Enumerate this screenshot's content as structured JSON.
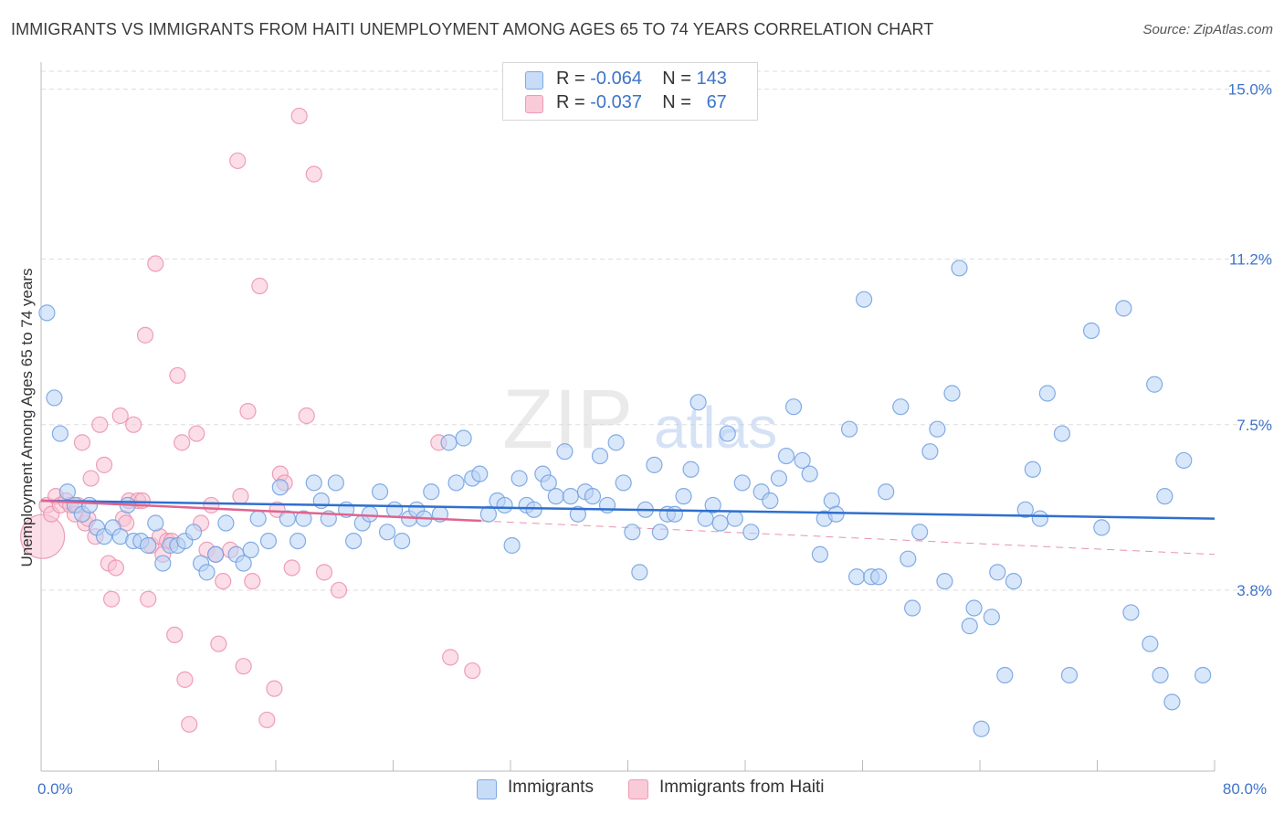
{
  "header": {
    "title": "IMMIGRANTS VS IMMIGRANTS FROM HAITI UNEMPLOYMENT AMONG AGES 65 TO 74 YEARS CORRELATION CHART",
    "source": "Source: ZipAtlas.com"
  },
  "watermark": {
    "zip": "ZIP",
    "atlas": "atlas"
  },
  "legend": {
    "r_label": "R =",
    "n_label": "N =",
    "series": [
      {
        "name": "Immigrants",
        "r": "-0.064",
        "n": "143"
      },
      {
        "name": "Immigrants from Haiti",
        "r": "-0.037",
        "n": "67"
      }
    ]
  },
  "colors": {
    "blue_fill": "#b9d3f5",
    "blue_stroke": "#6f9fe0",
    "blue_line": "#2f6fcf",
    "pink_fill": "#f8c2d3",
    "pink_stroke": "#ec8fae",
    "pink_line": "#e0648f",
    "axis_text": "#3f74c9",
    "grid": "#dddddd"
  },
  "chart_data": {
    "type": "scatter",
    "title": "IMMIGRANTS VS IMMIGRANTS FROM HAITI UNEMPLOYMENT AMONG AGES 65 TO 74 YEARS CORRELATION CHART",
    "xlabel": "",
    "ylabel": "Unemployment Among Ages 65 to 74 years",
    "xlim": [
      0,
      80
    ],
    "ylim": [
      0,
      15.4
    ],
    "x_tick_labels": [
      {
        "value": 0,
        "label": "0.0%"
      },
      {
        "value": 80,
        "label": "80.0%"
      }
    ],
    "y_tick_labels": [
      {
        "value": 3.8,
        "label": "3.8%"
      },
      {
        "value": 7.5,
        "label": "7.5%"
      },
      {
        "value": 11.2,
        "label": "11.2%"
      },
      {
        "value": 15.0,
        "label": "15.0%"
      }
    ],
    "series": [
      {
        "name": "Immigrants",
        "color": "blue",
        "trend": {
          "x": [
            0,
            80
          ],
          "y": [
            5.8,
            5.4
          ],
          "solid_to": 80
        },
        "points": [
          [
            0.4,
            10.0
          ],
          [
            0.9,
            8.1
          ],
          [
            1.3,
            7.3
          ],
          [
            1.8,
            6.0
          ],
          [
            2.3,
            5.7
          ],
          [
            2.8,
            5.5
          ],
          [
            3.3,
            5.7
          ],
          [
            3.8,
            5.2
          ],
          [
            4.3,
            5.0
          ],
          [
            4.9,
            5.2
          ],
          [
            5.4,
            5.0
          ],
          [
            5.9,
            5.7
          ],
          [
            6.3,
            4.9
          ],
          [
            6.8,
            4.9
          ],
          [
            7.3,
            4.8
          ],
          [
            7.8,
            5.3
          ],
          [
            8.3,
            4.4
          ],
          [
            8.8,
            4.8
          ],
          [
            9.3,
            4.8
          ],
          [
            9.8,
            4.9
          ],
          [
            10.4,
            5.1
          ],
          [
            10.9,
            4.4
          ],
          [
            11.3,
            4.2
          ],
          [
            11.9,
            4.6
          ],
          [
            12.6,
            5.3
          ],
          [
            13.3,
            4.6
          ],
          [
            13.8,
            4.4
          ],
          [
            14.3,
            4.7
          ],
          [
            14.8,
            5.4
          ],
          [
            15.5,
            4.9
          ],
          [
            16.3,
            6.1
          ],
          [
            16.8,
            5.4
          ],
          [
            17.5,
            4.9
          ],
          [
            17.9,
            5.4
          ],
          [
            18.6,
            6.2
          ],
          [
            19.1,
            5.8
          ],
          [
            19.6,
            5.4
          ],
          [
            20.1,
            6.2
          ],
          [
            20.8,
            5.6
          ],
          [
            21.3,
            4.9
          ],
          [
            21.9,
            5.3
          ],
          [
            22.4,
            5.5
          ],
          [
            23.1,
            6.0
          ],
          [
            23.6,
            5.1
          ],
          [
            24.1,
            5.6
          ],
          [
            24.6,
            4.9
          ],
          [
            25.1,
            5.4
          ],
          [
            25.6,
            5.6
          ],
          [
            26.1,
            5.4
          ],
          [
            26.6,
            6.0
          ],
          [
            27.2,
            5.5
          ],
          [
            27.8,
            7.1
          ],
          [
            28.3,
            6.2
          ],
          [
            28.8,
            7.2
          ],
          [
            29.4,
            6.3
          ],
          [
            29.9,
            6.4
          ],
          [
            30.5,
            5.5
          ],
          [
            31.1,
            5.8
          ],
          [
            31.6,
            5.7
          ],
          [
            32.1,
            4.8
          ],
          [
            32.6,
            6.3
          ],
          [
            33.1,
            5.7
          ],
          [
            33.6,
            5.6
          ],
          [
            34.2,
            6.4
          ],
          [
            34.6,
            6.2
          ],
          [
            35.1,
            5.9
          ],
          [
            35.7,
            6.9
          ],
          [
            36.1,
            5.9
          ],
          [
            36.6,
            5.5
          ],
          [
            37.1,
            6.0
          ],
          [
            37.6,
            5.9
          ],
          [
            38.1,
            6.8
          ],
          [
            38.6,
            5.7
          ],
          [
            39.2,
            7.1
          ],
          [
            39.7,
            6.2
          ],
          [
            40.3,
            5.1
          ],
          [
            40.8,
            4.2
          ],
          [
            41.2,
            5.6
          ],
          [
            41.8,
            6.6
          ],
          [
            42.2,
            5.1
          ],
          [
            42.7,
            5.5
          ],
          [
            43.2,
            5.5
          ],
          [
            43.8,
            5.9
          ],
          [
            44.3,
            6.5
          ],
          [
            44.8,
            8.0
          ],
          [
            45.3,
            5.4
          ],
          [
            45.8,
            5.7
          ],
          [
            46.3,
            5.3
          ],
          [
            46.8,
            7.3
          ],
          [
            47.3,
            5.4
          ],
          [
            47.8,
            6.2
          ],
          [
            48.4,
            5.1
          ],
          [
            49.1,
            6.0
          ],
          [
            49.7,
            5.8
          ],
          [
            50.3,
            6.3
          ],
          [
            50.8,
            6.8
          ],
          [
            51.3,
            7.9
          ],
          [
            51.9,
            6.7
          ],
          [
            52.4,
            6.4
          ],
          [
            53.1,
            4.6
          ],
          [
            53.4,
            5.4
          ],
          [
            53.9,
            5.8
          ],
          [
            54.2,
            5.5
          ],
          [
            55.1,
            7.4
          ],
          [
            55.6,
            4.1
          ],
          [
            56.1,
            10.3
          ],
          [
            56.6,
            4.1
          ],
          [
            57.1,
            4.1
          ],
          [
            57.6,
            6.0
          ],
          [
            58.6,
            7.9
          ],
          [
            59.1,
            4.5
          ],
          [
            59.4,
            3.4
          ],
          [
            59.9,
            5.1
          ],
          [
            60.6,
            6.9
          ],
          [
            61.1,
            7.4
          ],
          [
            61.6,
            4.0
          ],
          [
            62.1,
            8.2
          ],
          [
            62.6,
            11.0
          ],
          [
            63.3,
            3.0
          ],
          [
            63.6,
            3.4
          ],
          [
            64.1,
            0.7
          ],
          [
            64.8,
            3.2
          ],
          [
            65.2,
            4.2
          ],
          [
            65.7,
            1.9
          ],
          [
            66.3,
            4.0
          ],
          [
            67.1,
            5.6
          ],
          [
            67.6,
            6.5
          ],
          [
            68.1,
            5.4
          ],
          [
            68.6,
            8.2
          ],
          [
            69.6,
            7.3
          ],
          [
            70.1,
            1.9
          ],
          [
            71.6,
            9.6
          ],
          [
            72.3,
            5.2
          ],
          [
            73.8,
            10.1
          ],
          [
            74.3,
            3.3
          ],
          [
            75.6,
            2.6
          ],
          [
            75.9,
            8.4
          ],
          [
            76.3,
            1.9
          ],
          [
            76.6,
            5.9
          ],
          [
            77.1,
            1.3
          ],
          [
            77.9,
            6.7
          ],
          [
            79.2,
            1.9
          ]
        ]
      },
      {
        "name": "Immigrants from Haiti",
        "color": "pink",
        "trend": {
          "x": [
            0,
            80
          ],
          "y": [
            5.8,
            4.6
          ],
          "solid_to": 30
        },
        "points": [
          [
            0.1,
            5.0
          ],
          [
            0.4,
            5.7
          ],
          [
            0.7,
            5.5
          ],
          [
            1.0,
            5.9
          ],
          [
            1.3,
            5.7
          ],
          [
            1.7,
            5.8
          ],
          [
            2.0,
            5.7
          ],
          [
            2.3,
            5.5
          ],
          [
            2.5,
            5.7
          ],
          [
            2.8,
            7.1
          ],
          [
            3.0,
            5.3
          ],
          [
            3.2,
            5.4
          ],
          [
            3.4,
            6.3
          ],
          [
            3.7,
            5.0
          ],
          [
            4.0,
            7.5
          ],
          [
            4.3,
            6.6
          ],
          [
            4.6,
            4.4
          ],
          [
            4.8,
            3.6
          ],
          [
            5.1,
            4.3
          ],
          [
            5.4,
            7.7
          ],
          [
            5.6,
            5.4
          ],
          [
            5.8,
            5.3
          ],
          [
            6.0,
            5.8
          ],
          [
            6.3,
            7.5
          ],
          [
            6.6,
            5.8
          ],
          [
            6.9,
            5.8
          ],
          [
            7.1,
            9.5
          ],
          [
            7.3,
            3.6
          ],
          [
            7.5,
            4.8
          ],
          [
            7.8,
            11.1
          ],
          [
            8.1,
            5.0
          ],
          [
            8.3,
            4.6
          ],
          [
            8.6,
            4.9
          ],
          [
            8.9,
            4.9
          ],
          [
            9.1,
            2.8
          ],
          [
            9.3,
            8.6
          ],
          [
            9.6,
            7.1
          ],
          [
            9.8,
            1.8
          ],
          [
            10.1,
            0.8
          ],
          [
            10.6,
            7.3
          ],
          [
            10.9,
            5.3
          ],
          [
            11.3,
            4.7
          ],
          [
            11.6,
            5.7
          ],
          [
            11.9,
            4.6
          ],
          [
            12.1,
            2.6
          ],
          [
            12.4,
            4.0
          ],
          [
            12.9,
            4.7
          ],
          [
            13.4,
            13.4
          ],
          [
            13.6,
            5.9
          ],
          [
            13.8,
            2.1
          ],
          [
            14.1,
            7.8
          ],
          [
            14.4,
            4.0
          ],
          [
            14.9,
            10.6
          ],
          [
            15.4,
            0.9
          ],
          [
            15.9,
            1.6
          ],
          [
            16.1,
            5.6
          ],
          [
            16.3,
            6.4
          ],
          [
            16.6,
            6.2
          ],
          [
            17.1,
            4.3
          ],
          [
            17.6,
            14.4
          ],
          [
            18.1,
            7.7
          ],
          [
            18.6,
            13.1
          ],
          [
            19.3,
            4.2
          ],
          [
            20.3,
            3.8
          ],
          [
            27.1,
            7.1
          ],
          [
            27.9,
            2.3
          ],
          [
            29.4,
            2.0
          ]
        ]
      }
    ]
  }
}
